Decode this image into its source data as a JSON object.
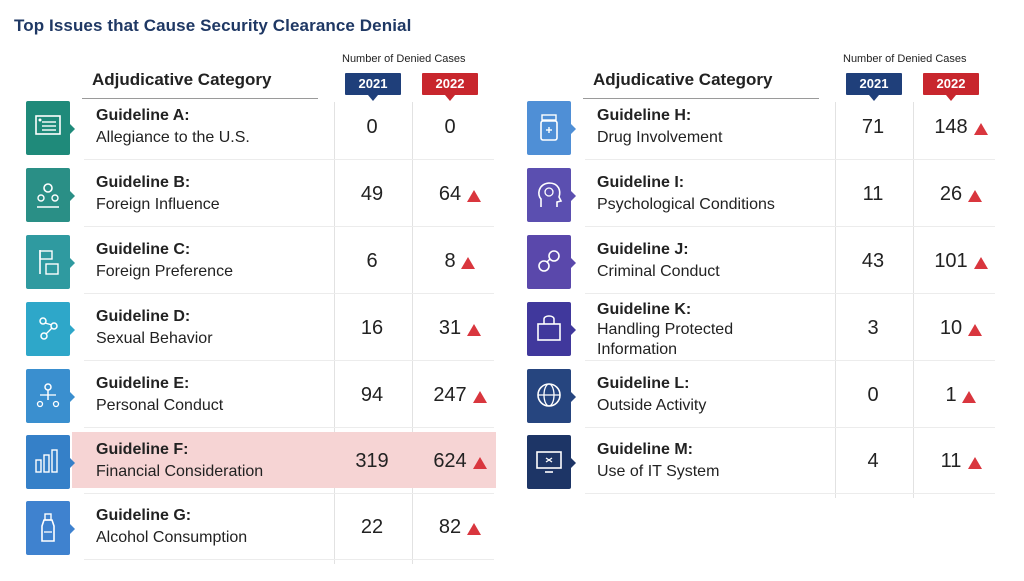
{
  "title": "Top Issues that Cause Security Clearance Denial",
  "column_header": "Adjudicative Category",
  "cases_header": "Number of Denied Cases",
  "years": [
    "2021",
    "2022"
  ],
  "colors": {
    "year_2021": "#1f3f7a",
    "year_2022": "#c8262d",
    "increase": "#d9363e",
    "highlight": "#f6d4d4"
  },
  "chart_data": {
    "type": "table",
    "title": "Top Issues that Cause Security Clearance Denial",
    "columns": [
      "Adjudicative Category",
      "2021",
      "2022"
    ],
    "rows": [
      {
        "guideline": "Guideline A:",
        "category": "Allegiance to the U.S.",
        "v2021": 0,
        "v2022": 0,
        "increase": false,
        "icon": "flag-document-icon",
        "color": "#1f8a7a"
      },
      {
        "guideline": "Guideline B:",
        "category": "Foreign Influence",
        "v2021": 49,
        "v2022": 64,
        "increase": true,
        "icon": "people-globe-icon",
        "color": "#2a8f86"
      },
      {
        "guideline": "Guideline C:",
        "category": "Foreign Preference",
        "v2021": 6,
        "v2022": 8,
        "increase": true,
        "icon": "flag-podium-icon",
        "color": "#2f9aa0"
      },
      {
        "guideline": "Guideline D:",
        "category": "Sexual Behavior",
        "v2021": 16,
        "v2022": 31,
        "increase": true,
        "icon": "network-people-icon",
        "color": "#2ea7c9"
      },
      {
        "guideline": "Guideline E:",
        "category": "Personal Conduct",
        "v2021": 94,
        "v2022": 247,
        "increase": true,
        "icon": "person-network-icon",
        "color": "#3a8fcf"
      },
      {
        "guideline": "Guideline F:",
        "category": "Financial Consideration",
        "v2021": 319,
        "v2022": 624,
        "increase": true,
        "icon": "bar-chart-money-icon",
        "color": "#3580c8",
        "highlight": true
      },
      {
        "guideline": "Guideline G:",
        "category": "Alcohol Consumption",
        "v2021": 22,
        "v2022": 82,
        "increase": true,
        "icon": "bottle-icon",
        "color": "#3f82cf"
      },
      {
        "guideline": "Guideline H:",
        "category": "Drug Involvement",
        "v2021": 71,
        "v2022": 148,
        "increase": true,
        "icon": "pill-bottle-icon",
        "color": "#4f8fd6"
      },
      {
        "guideline": "Guideline I:",
        "category": "Psychological Conditions",
        "v2021": 11,
        "v2022": 26,
        "increase": true,
        "icon": "head-brain-icon",
        "color": "#5b4fb0"
      },
      {
        "guideline": "Guideline J:",
        "category": "Criminal Conduct",
        "v2021": 43,
        "v2022": 101,
        "increase": true,
        "icon": "handcuffs-icon",
        "color": "#5a48ab"
      },
      {
        "guideline": "Guideline K:",
        "category": "Handling Protected Information",
        "category_lines": [
          "Handling Protected",
          "Information"
        ],
        "v2021": 3,
        "v2022": 10,
        "increase": true,
        "icon": "secure-folder-icon",
        "color": "#40389c"
      },
      {
        "guideline": "Guideline L:",
        "category": "Outside Activity",
        "v2021": 0,
        "v2022": 1,
        "increase": true,
        "icon": "globe-icon",
        "color": "#26457f"
      },
      {
        "guideline": "Guideline M:",
        "category": "Use of IT System",
        "v2021": 4,
        "v2022": 11,
        "increase": true,
        "icon": "monitor-icon",
        "color": "#1d3566"
      }
    ]
  }
}
